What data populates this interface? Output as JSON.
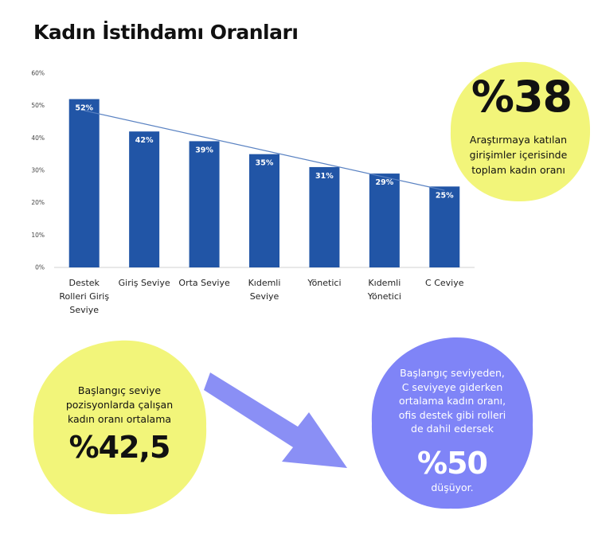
{
  "title": "Kadın İstihdamı Oranları",
  "chart_data": {
    "type": "bar",
    "categories": [
      [
        "Destek",
        "Rolleri Giriş",
        "Seviye"
      ],
      [
        "Giriş Seviye"
      ],
      [
        "Orta Seviye"
      ],
      [
        "Kıdemli",
        "Seviye"
      ],
      [
        "Yönetici"
      ],
      [
        "Kıdemli",
        "Yönetici"
      ],
      [
        "C Ceviye"
      ]
    ],
    "values": [
      52,
      42,
      39,
      35,
      31,
      29,
      25
    ],
    "value_labels": [
      "52%",
      "42%",
      "39%",
      "35%",
      "31%",
      "29%",
      "25%"
    ],
    "yticks": [
      "0%",
      "10%",
      "20%",
      "30%",
      "40%",
      "50%",
      "60%"
    ],
    "ylim": [
      0,
      60
    ],
    "trendline": true,
    "colors": {
      "bar": "#2155a6",
      "trend": "#5a82c2",
      "axis": "#d0d0d0"
    }
  },
  "callouts": {
    "top_right": {
      "value": "%38",
      "lines": [
        "Araştırmaya katılan",
        "girişimler içerisinde",
        "toplam kadın oranı"
      ]
    },
    "bottom_left": {
      "lines": [
        "Başlangıç seviye",
        "pozisyonlarda çalışan",
        "kadın oranı ortalama"
      ],
      "value": "%42,5"
    },
    "bottom_right": {
      "lines": [
        "Başlangıç seviyeden,",
        "C seviyeye giderken",
        "ortalama kadın oranı,",
        "ofis destek gibi rolleri",
        "de dahil edersek"
      ],
      "value": "%50",
      "suffix": "düşüyor."
    }
  },
  "colors": {
    "yellow": "#f2f57a",
    "purple": "#7f84f7",
    "arrow": "#8a8ff5"
  }
}
